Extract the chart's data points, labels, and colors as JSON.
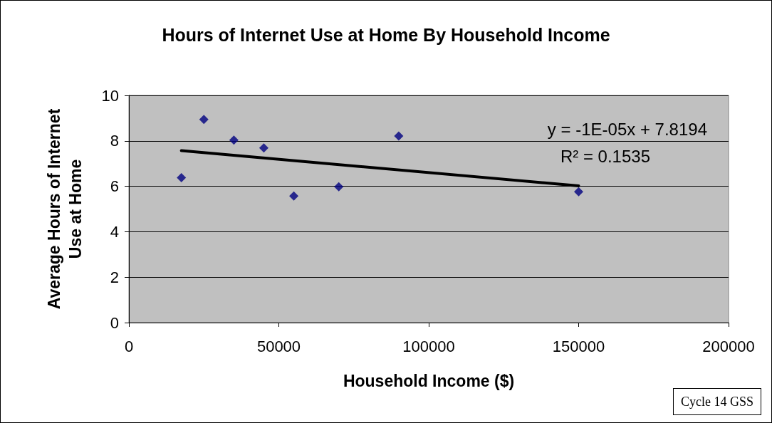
{
  "chart_data": {
    "type": "scatter",
    "title": "Hours of Internet Use at Home By Household Income",
    "xlabel": "Household Income ($)",
    "ylabel": "Average Hours of Internet Use at Home",
    "x": [
      17500,
      25000,
      35000,
      45000,
      55000,
      70000,
      90000,
      150000
    ],
    "series": [
      {
        "color": "#000080",
        "marker": "diamond",
        "values": [
          6.38,
          8.94,
          8.03,
          7.69,
          5.57,
          5.98,
          8.21,
          5.76
        ]
      },
      {
        "type": "line",
        "color": "#000000",
        "marker": "none",
        "line_style": "solid",
        "x": [
          17500,
          150000
        ],
        "values": [
          7.57,
          6.02
        ]
      }
    ],
    "xlim": [
      0,
      200000
    ],
    "xticks": [
      0,
      50000,
      100000,
      150000,
      200000
    ],
    "ylim": [
      0,
      10
    ],
    "yticks": [
      0,
      2,
      4,
      6,
      8,
      10
    ],
    "grid": "y",
    "annotations": [
      "y = -1E-05x + 7.8194",
      "R² = 0.1535",
      "Cycle 14 GSS"
    ]
  }
}
